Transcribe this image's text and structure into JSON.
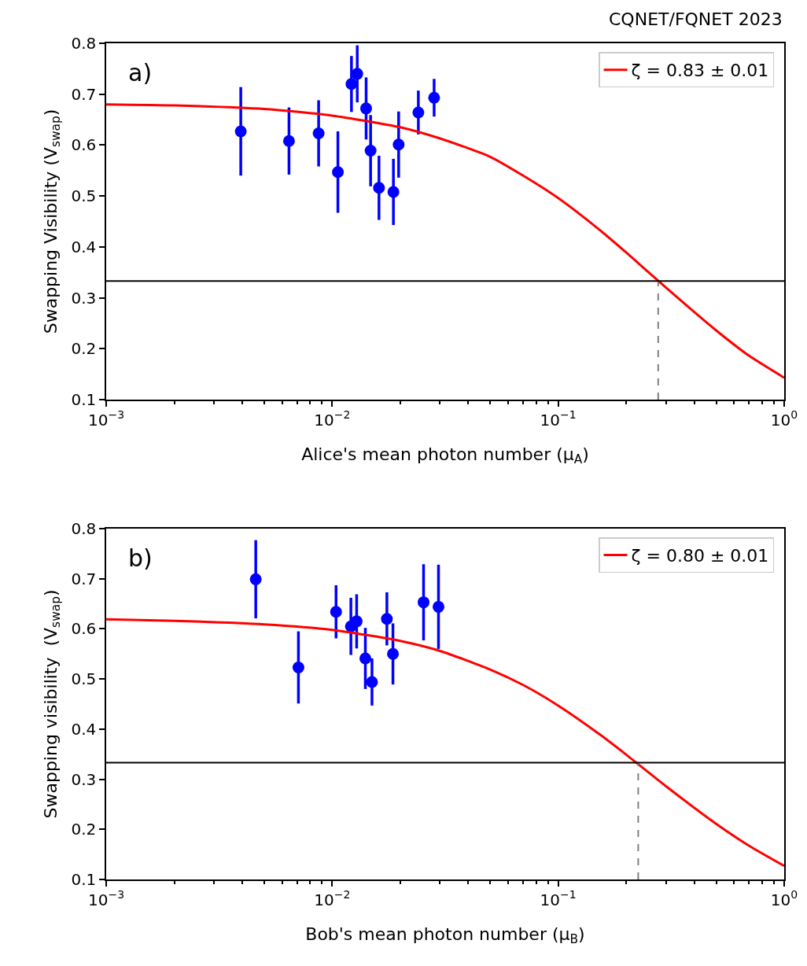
{
  "chart_data": [
    {
      "type": "scatter",
      "title": "CQNET/FQNET 2023",
      "xlabel": "Alice's mean photon number (μ$_{A}$)",
      "ylabel": "Swapping Visibility (V$_{swap}$)",
      "annotations": [
        "a)"
      ],
      "log": "x",
      "grid": false,
      "legend": "top right",
      "xlim": [
        0.001,
        1
      ],
      "xticks": [
        {
          "value": 0.001,
          "label": "10$^{−3}$"
        },
        {
          "value": 0.01,
          "label": "10$^{−2}$"
        },
        {
          "value": 0.1,
          "label": "10$^{−1}$"
        },
        {
          "value": 1,
          "label": "10$^{0}$"
        }
      ],
      "ylim": [
        0.1,
        0.8
      ],
      "yticks": [
        0.1,
        0.2,
        0.3,
        0.4,
        0.5,
        0.6,
        0.7,
        0.8
      ],
      "ref_lines": [
        {
          "axis": "y",
          "value": 0.333,
          "color": "#000000"
        }
      ],
      "series": [
        {
          "marker": "circle",
          "color": "#0000ff",
          "x": [
            0.00394,
            0.00644,
            0.00871,
            0.0106,
            0.01217,
            0.01291,
            0.01413,
            0.01479,
            0.01611,
            0.01866,
            0.01968,
            0.02406,
            0.02825
          ],
          "values": [
            0.627,
            0.608,
            0.623,
            0.547,
            0.72,
            0.74,
            0.672,
            0.589,
            0.516,
            0.508,
            0.601,
            0.664,
            0.693
          ],
          "errors": [
            0.087,
            0.066,
            0.065,
            0.08,
            0.055,
            0.056,
            0.061,
            0.07,
            0.063,
            0.065,
            0.065,
            0.043,
            0.037
          ]
        },
        {
          "type": "line",
          "marker": "none",
          "name": "ζ = 0.83 ± 0.01",
          "color": "#ff0000",
          "line_style": "solid",
          "x": [
            0.001,
            0.002,
            0.005,
            0.01,
            0.02,
            0.03,
            0.05,
            0.07,
            0.1,
            0.15,
            0.2,
            0.3,
            0.5,
            0.7,
            1
          ],
          "values": [
            0.68,
            0.678,
            0.671,
            0.658,
            0.635,
            0.613,
            0.577,
            0.54,
            0.496,
            0.436,
            0.389,
            0.32,
            0.236,
            0.186,
            0.143
          ]
        },
        {
          "type": "line",
          "marker": "none",
          "color": "#808080",
          "line_style": "dashed",
          "x": [
            0.277,
            0.277
          ],
          "values": [
            0.1,
            0.333
          ]
        }
      ]
    },
    {
      "type": "scatter",
      "xlabel": "Bob's mean photon number (μ$_{B}$)",
      "ylabel": "Swapping visibility  (V$_{swap}$)",
      "annotations": [
        "b)"
      ],
      "log": "x",
      "grid": false,
      "legend": "top right",
      "xlim": [
        0.001,
        1
      ],
      "xticks": [
        {
          "value": 0.001,
          "label": "10$^{−3}$"
        },
        {
          "value": 0.01,
          "label": "10$^{−2}$"
        },
        {
          "value": 0.1,
          "label": "10$^{−1}$"
        },
        {
          "value": 1,
          "label": "10$^{0}$"
        }
      ],
      "ylim": [
        0.1,
        0.8
      ],
      "yticks": [
        0.1,
        0.2,
        0.3,
        0.4,
        0.5,
        0.6,
        0.7,
        0.8
      ],
      "ref_lines": [
        {
          "axis": "y",
          "value": 0.333,
          "color": "#000000"
        }
      ],
      "series": [
        {
          "marker": "circle",
          "color": "#0000ff",
          "x": [
            0.00459,
            0.00709,
            0.0104,
            0.0121,
            0.01283,
            0.01402,
            0.015,
            0.01746,
            0.01857,
            0.02537,
            0.02954
          ],
          "values": [
            0.699,
            0.523,
            0.634,
            0.605,
            0.615,
            0.541,
            0.494,
            0.62,
            0.55,
            0.653,
            0.644
          ],
          "errors": [
            0.078,
            0.072,
            0.053,
            0.057,
            0.054,
            0.061,
            0.047,
            0.053,
            0.061,
            0.076,
            0.084
          ]
        },
        {
          "type": "line",
          "marker": "none",
          "name": "ζ = 0.80 ± 0.01",
          "color": "#ff0000",
          "line_style": "solid",
          "x": [
            0.001,
            0.002,
            0.005,
            0.01,
            0.02,
            0.03,
            0.05,
            0.07,
            0.1,
            0.15,
            0.2,
            0.3,
            0.5,
            0.7,
            1
          ],
          "values": [
            0.619,
            0.616,
            0.609,
            0.598,
            0.576,
            0.556,
            0.519,
            0.488,
            0.447,
            0.392,
            0.349,
            0.286,
            0.211,
            0.167,
            0.127
          ]
        },
        {
          "type": "line",
          "marker": "none",
          "color": "#808080",
          "line_style": "dashed",
          "x": [
            0.226,
            0.226
          ],
          "values": [
            0.1,
            0.333
          ]
        }
      ]
    }
  ]
}
